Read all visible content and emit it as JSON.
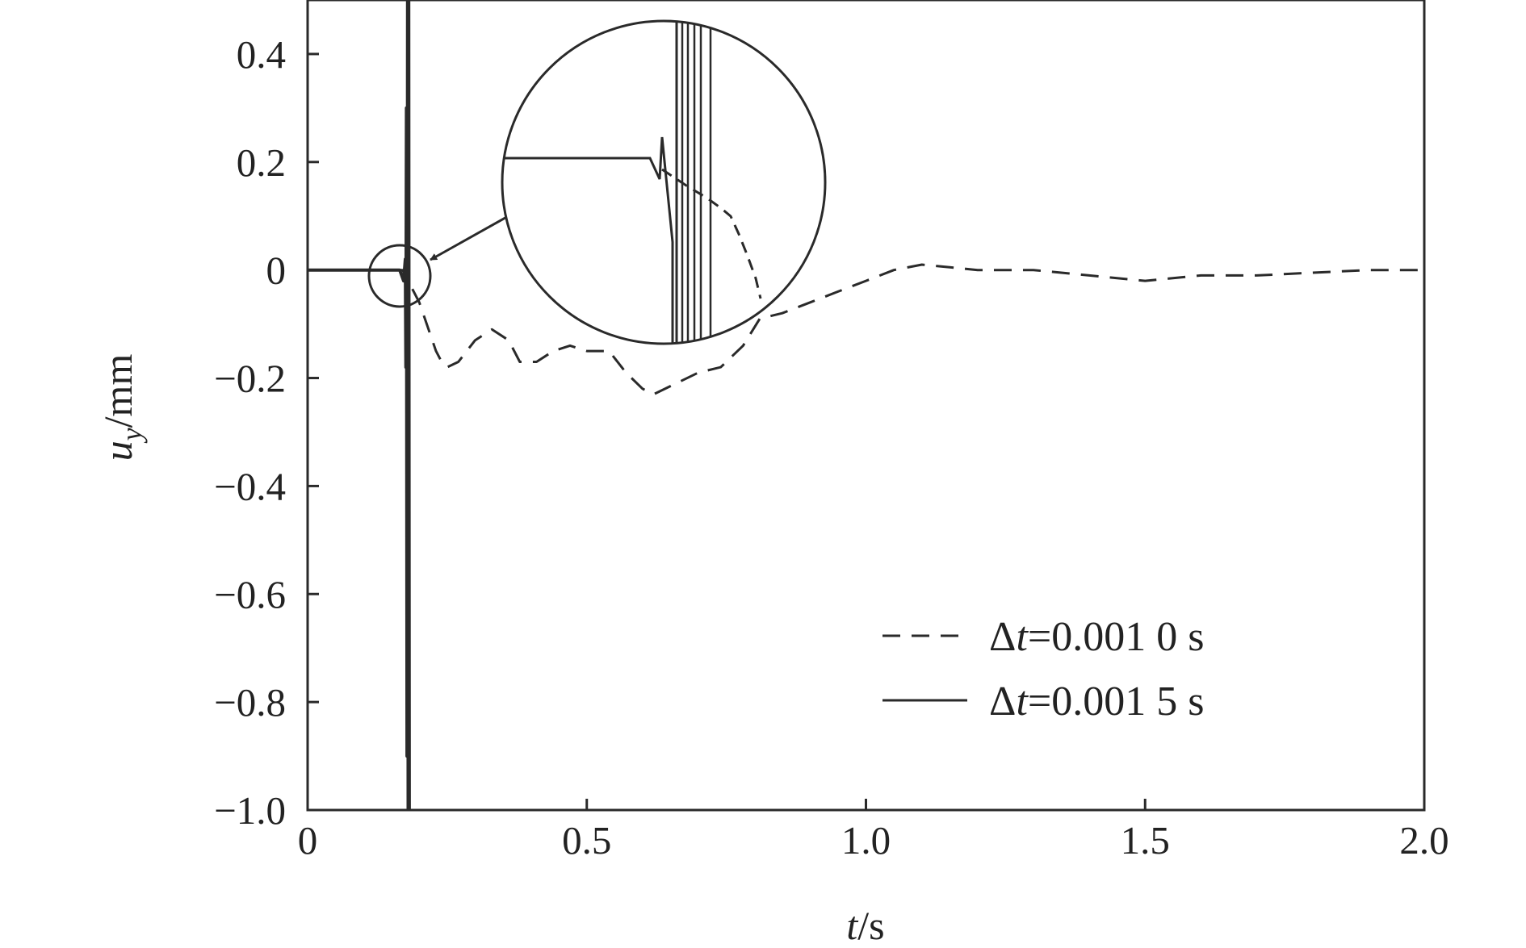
{
  "chart_data": {
    "type": "line",
    "xlabel": {
      "var": "t",
      "unit": "/s"
    },
    "ylabel": {
      "var": "u",
      "sub": "y",
      "unit": "/mm"
    },
    "xlim": [
      0,
      2.0
    ],
    "ylim": [
      -1.0,
      0.5
    ],
    "xticks": [
      0,
      0.5,
      1.0,
      1.5,
      2.0
    ],
    "xtick_labels": [
      "0",
      "0.5",
      "1.0",
      "1.5",
      "2.0"
    ],
    "yticks": [
      0.4,
      0.2,
      0,
      -0.2,
      -0.4,
      -0.6,
      -0.8,
      -1.0
    ],
    "ytick_labels": [
      "0.4",
      "0.2",
      "0",
      "−0.2",
      "−0.4",
      "−0.6",
      "−0.8",
      "−1.0"
    ],
    "grid": false,
    "legend_position": "bottom-right",
    "series": [
      {
        "name": "Δt=0.001 0 s",
        "name_parts": {
          "delta": "Δ",
          "var": "t",
          "rest": "=0.001 0 s"
        },
        "style": "dashed",
        "x": [
          0,
          0.15,
          0.17,
          0.18,
          0.19,
          0.2,
          0.21,
          0.22,
          0.23,
          0.24,
          0.25,
          0.27,
          0.3,
          0.33,
          0.36,
          0.38,
          0.41,
          0.44,
          0.47,
          0.5,
          0.54,
          0.57,
          0.6,
          0.62,
          0.66,
          0.7,
          0.74,
          0.78,
          0.81,
          0.85,
          0.9,
          0.95,
          1.0,
          1.05,
          1.1,
          1.15,
          1.2,
          1.3,
          1.4,
          1.5,
          1.6,
          1.7,
          1.8,
          1.9,
          2.0
        ],
        "y": [
          0,
          0,
          0,
          -0.02,
          -0.04,
          -0.06,
          -0.09,
          -0.12,
          -0.15,
          -0.17,
          -0.18,
          -0.17,
          -0.13,
          -0.11,
          -0.13,
          -0.17,
          -0.17,
          -0.15,
          -0.14,
          -0.15,
          -0.15,
          -0.19,
          -0.22,
          -0.23,
          -0.21,
          -0.19,
          -0.18,
          -0.14,
          -0.09,
          -0.08,
          -0.06,
          -0.04,
          -0.02,
          0.0,
          0.01,
          0.005,
          0.0,
          0.0,
          -0.01,
          -0.02,
          -0.01,
          -0.01,
          -0.005,
          0.0,
          0.0
        ]
      },
      {
        "name": "Δt=0.001 5 s",
        "name_parts": {
          "delta": "Δ",
          "var": "t",
          "rest": "=0.001 5 s"
        },
        "style": "solid",
        "x": [
          0,
          0.165,
          0.172,
          0.175,
          0.176,
          0.177,
          0.178,
          0.179,
          0.18,
          0.181,
          0.182
        ],
        "y": [
          0,
          0,
          -0.02,
          0.02,
          -0.18,
          0.3,
          -0.9,
          0.5,
          -1.0,
          0.5,
          -1.0
        ]
      }
    ],
    "annotations": [
      {
        "type": "zoom-circle",
        "target_x": 0.175,
        "target_y": -0.01
      }
    ]
  }
}
